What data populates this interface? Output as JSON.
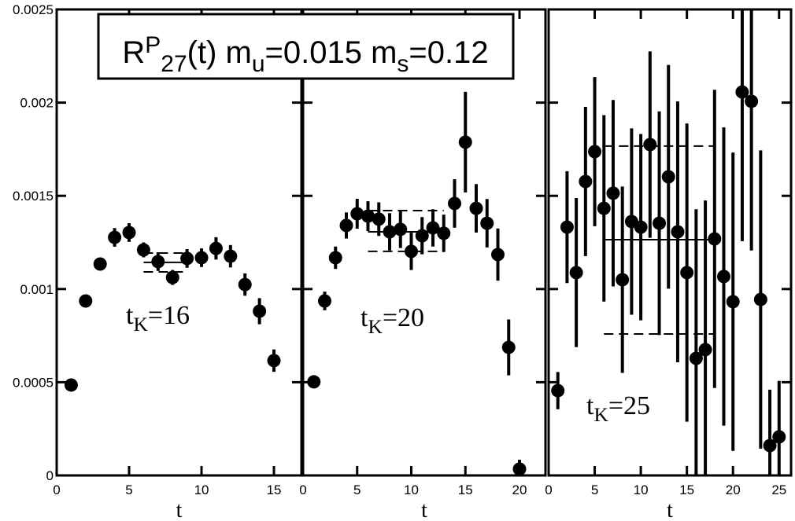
{
  "chart_data": [
    {
      "type": "scatter",
      "title_parts": [
        [
          "R",
          "base"
        ],
        [
          "P",
          "sup"
        ],
        [
          "27",
          "sub"
        ],
        [
          "(t) m",
          "base"
        ],
        [
          "u",
          "sub"
        ],
        [
          "=0.015 m",
          "base"
        ],
        [
          "s",
          "sub"
        ],
        [
          "=0.12",
          "base"
        ]
      ],
      "annotation_parts": [
        [
          "t",
          "base"
        ],
        [
          "K",
          "sub"
        ],
        [
          "=16",
          "base"
        ]
      ],
      "xlabel": "t",
      "x": [
        1,
        2,
        3,
        4,
        5,
        6,
        7,
        8,
        9,
        10,
        11,
        12,
        13,
        14,
        15
      ],
      "values": [
        0.000485,
        0.000936,
        0.001134,
        0.001277,
        0.001303,
        0.00121,
        0.001147,
        0.001062,
        0.001164,
        0.001168,
        0.001218,
        0.001176,
        0.001024,
        0.000881,
        0.000616
      ],
      "errors": [
        1e-05,
        3e-05,
        3e-05,
        5e-05,
        5e-05,
        4e-05,
        5e-05,
        4e-05,
        5e-05,
        5e-05,
        6e-05,
        6e-05,
        6e-05,
        7e-05,
        6e-05
      ],
      "fit_range": [
        6,
        9
      ],
      "fit_value": 0.001143,
      "fit_band": [
        0.001092,
        0.001193
      ],
      "xlim": [
        0,
        16.9
      ],
      "xticks": [
        0,
        5,
        10,
        15
      ],
      "ylim": [
        0,
        0.0025
      ],
      "yticks": [
        0,
        0.0005,
        0.001,
        0.0015,
        0.002,
        0.0025
      ],
      "color": "#000000"
    },
    {
      "type": "scatter",
      "annotation_parts": [
        [
          "t",
          "base"
        ],
        [
          "K",
          "sub"
        ],
        [
          "=20",
          "base"
        ]
      ],
      "xlabel": "t",
      "x": [
        1,
        2,
        3,
        4,
        5,
        6,
        7,
        8,
        9,
        10,
        11,
        12,
        13,
        14,
        15,
        16,
        17,
        18,
        19,
        20
      ],
      "values": [
        0.000502,
        0.000936,
        0.001168,
        0.001341,
        0.001404,
        0.001391,
        0.001375,
        0.001307,
        0.00132,
        0.001202,
        0.001286,
        0.001328,
        0.001299,
        0.001459,
        0.001788,
        0.001433,
        0.001353,
        0.001185,
        0.000687,
        3.4e-05
      ],
      "errors": [
        1e-05,
        5e-05,
        6e-05,
        7e-05,
        8e-05,
        8e-05,
        9e-05,
        0.0001,
        0.0001,
        0.0001,
        0.0001,
        0.0001,
        0.0001,
        0.00013,
        0.00027,
        0.00013,
        0.00013,
        0.00014,
        0.00015,
        5e-05
      ],
      "fit_range": [
        6,
        13
      ],
      "fit_value": 0.001307,
      "fit_band": [
        0.001202,
        0.001421
      ],
      "xlim": [
        0,
        22.4
      ],
      "xticks": [
        0,
        5,
        10,
        15,
        20
      ],
      "ylim": [
        0,
        0.0025
      ],
      "color": "#000000"
    },
    {
      "type": "scatter",
      "annotation_parts": [
        [
          "t",
          "base"
        ],
        [
          "K",
          "sub"
        ],
        [
          "=25",
          "base"
        ]
      ],
      "xlabel": "t",
      "x": [
        1,
        2,
        3,
        4,
        5,
        6,
        7,
        8,
        9,
        10,
        11,
        12,
        13,
        14,
        15,
        16,
        17,
        18,
        19,
        20,
        21,
        22,
        23,
        24,
        25
      ],
      "values": [
        0.000455,
        0.001332,
        0.001088,
        0.001577,
        0.001737,
        0.001433,
        0.001514,
        0.00105,
        0.001362,
        0.001332,
        0.001775,
        0.001353,
        0.001602,
        0.001307,
        0.001088,
        0.000628,
        0.000675,
        0.001269,
        0.001067,
        0.000932,
        0.002057,
        0.002007,
        0.000944,
        0.00016,
        0.000207
      ],
      "errors": [
        0.0001,
        0.0003,
        0.0004,
        0.0004,
        0.0004,
        0.0005,
        0.0005,
        0.0005,
        0.0005,
        0.0005,
        0.0005,
        0.0006,
        0.0006,
        0.0007,
        0.0008,
        0.0008,
        0.0008,
        0.0008,
        0.0008,
        0.0008,
        0.0008,
        0.0008,
        0.0008,
        0.0003,
        0.0003
      ],
      "fit_range": [
        6,
        18
      ],
      "fit_value": 0.001265,
      "fit_band": [
        0.000759,
        0.001767
      ],
      "xlim": [
        0,
        26.3
      ],
      "xticks": [
        0,
        5,
        10,
        15,
        20,
        25
      ],
      "ylim": [
        0,
        0.0025
      ],
      "color": "#000000"
    }
  ]
}
